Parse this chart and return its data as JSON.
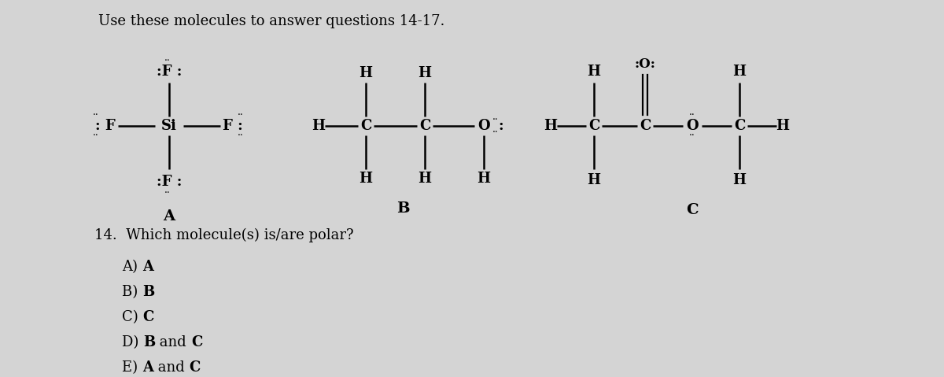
{
  "bg_color": "#d4d4d4",
  "title": "Use these molecules to answer questions 14-17.",
  "mol_A_label": "A",
  "mol_B_label": "B",
  "mol_C_label": "C",
  "question": "14.  Which molecule(s) is/are polar?",
  "answers": [
    "A) A",
    "B) B",
    "C) C",
    "D) B and C",
    "E) A and C"
  ],
  "answer_bold_parts": [
    [
      "A"
    ],
    [
      "B"
    ],
    [
      "C"
    ],
    [
      "B",
      "C"
    ],
    [
      "A",
      "C"
    ]
  ]
}
